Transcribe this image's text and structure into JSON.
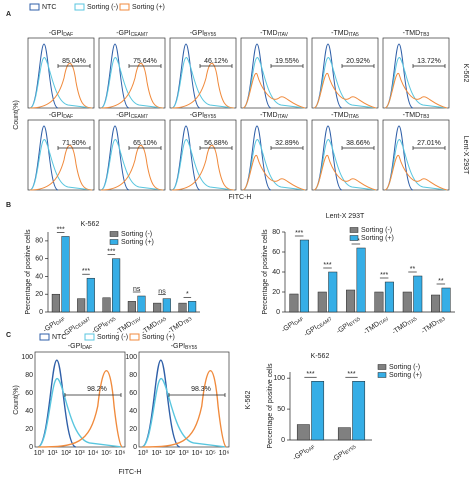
{
  "panel_labels": [
    "A",
    "B",
    "C"
  ],
  "panel_a": {
    "legend": [
      "NTC",
      "Sorting (-)",
      "Sorting (+)"
    ],
    "columns": [
      {
        "name": "-GPI",
        "sub": "DAF"
      },
      {
        "name": "-GPI",
        "sub": "CEAM7"
      },
      {
        "name": "-GPI",
        "sub": "BY55"
      },
      {
        "name": "-TMD",
        "sub": "ITAV"
      },
      {
        "name": "-TMD",
        "sub": "ITA5"
      },
      {
        "name": "-TMD",
        "sub": "TB3"
      }
    ],
    "rows": [
      {
        "label": "K-562",
        "percents": [
          "85.04%",
          "75.64%",
          "46.12%",
          "19.55%",
          "20.92%",
          "13.72%"
        ]
      },
      {
        "label": "Lent-X 293T",
        "percents": [
          "71.90%",
          "65.10%",
          "56.88%",
          "32.89%",
          "38.66%",
          "27.01%"
        ]
      }
    ],
    "y_label": "Count(%)",
    "x_label": "FITC-H"
  },
  "panel_c_hist": {
    "legend": [
      "NTC",
      "Sorting (-)",
      "Sorting (+)"
    ],
    "plots": [
      {
        "name": "-GPI",
        "sub": "DAF",
        "percent": "98.2%"
      },
      {
        "name": "-GPI",
        "sub": "BY55",
        "percent": "98.3%"
      }
    ],
    "xticks": [
      "10⁰",
      "10¹",
      "10²",
      "10³",
      "10⁴",
      "10⁵",
      "10⁶"
    ],
    "yticks": [
      0,
      20,
      40,
      60,
      80,
      100
    ],
    "y_label": "Count(%)",
    "x_label": "FITC-H",
    "side_label": "K-562"
  },
  "chart_data": [
    {
      "type": "bar",
      "title": "K-562",
      "y_label": "Percentage of positive cells",
      "categories": [
        "-GPI",
        "-GPI",
        "-GPI",
        "-TMD",
        "-TMD",
        "-TMD"
      ],
      "category_subscripts": [
        "DAF",
        "CEAM7",
        "BY55",
        "ITAV",
        "ITA5",
        "TB3"
      ],
      "series": [
        {
          "name": "Sorting (-)",
          "color": "#808080",
          "values": [
            20,
            15,
            16,
            12,
            10,
            10
          ]
        },
        {
          "name": "Sorting (+)",
          "color": "#36aee6",
          "values": [
            85,
            38,
            60,
            18,
            15,
            12
          ]
        }
      ],
      "significance": [
        "***",
        "***",
        "***",
        "ns",
        "ns",
        "*"
      ],
      "ylim": [
        0,
        90
      ],
      "yticks": [
        0,
        20,
        40,
        60,
        80
      ]
    },
    {
      "type": "bar",
      "title": "Lent-X 293T",
      "y_label": "Percentage of positive cells",
      "categories": [
        "-GPI",
        "-GPI",
        "-GPI",
        "-TMD",
        "-TMD",
        "-TMD"
      ],
      "category_subscripts": [
        "DAF",
        "CEAM7",
        "BY55",
        "ITAV",
        "ITA5",
        "TB3"
      ],
      "series": [
        {
          "name": "Sorting (-)",
          "color": "#808080",
          "values": [
            18,
            20,
            22,
            20,
            20,
            17
          ]
        },
        {
          "name": "Sorting (+)",
          "color": "#36aee6",
          "values": [
            72,
            40,
            64,
            30,
            36,
            24
          ]
        }
      ],
      "significance": [
        "***",
        "***",
        "***",
        "***",
        "**",
        "**"
      ],
      "ylim": [
        0,
        80
      ],
      "yticks": [
        0,
        20,
        40,
        60,
        80
      ]
    },
    {
      "type": "bar",
      "title": "K-562",
      "y_label": "Percentage of positive cells",
      "categories": [
        "-GPI",
        "-GPI"
      ],
      "category_subscripts": [
        "DAF",
        "BY55"
      ],
      "series": [
        {
          "name": "Sorting (-)",
          "color": "#808080",
          "values": [
            25,
            20
          ]
        },
        {
          "name": "Sorting (+)",
          "color": "#36aee6",
          "values": [
            95,
            95
          ]
        }
      ],
      "significance": [
        "***",
        "***"
      ],
      "ylim": [
        0,
        110
      ],
      "yticks": [
        0,
        50,
        100
      ]
    }
  ]
}
